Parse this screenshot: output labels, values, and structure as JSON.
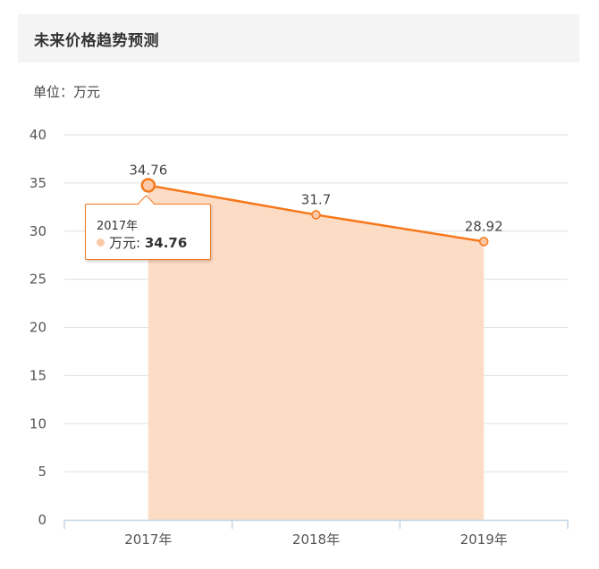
{
  "header": {
    "title": "未来价格趋势预测"
  },
  "unit": {
    "label": "单位：万元"
  },
  "tooltip": {
    "category": "2017年",
    "series_name": "万元",
    "separator": ": ",
    "value": "34.76"
  },
  "colors": {
    "line": "#f6781b",
    "area": "#fddcc5",
    "marker_fill": "#fbc9a8",
    "grid": "#e0e0e0",
    "axis": "#c4d4e4"
  },
  "chart_data": {
    "type": "area",
    "title": "未来价格趋势预测",
    "subtitle": "单位：万元",
    "xlabel": "",
    "ylabel": "万元",
    "categories": [
      "2017年",
      "2018年",
      "2019年"
    ],
    "series": [
      {
        "name": "万元",
        "values": [
          34.76,
          31.7,
          28.92
        ]
      }
    ],
    "data_labels": [
      "34.76",
      "31.7",
      "28.92"
    ],
    "y_ticks": [
      "0",
      "5",
      "10",
      "15",
      "20",
      "25",
      "30",
      "35",
      "40"
    ],
    "ylim": [
      0,
      40
    ],
    "grid": true,
    "legend": "none",
    "highlighted_point": {
      "category": "2017年",
      "value": 34.76
    }
  }
}
